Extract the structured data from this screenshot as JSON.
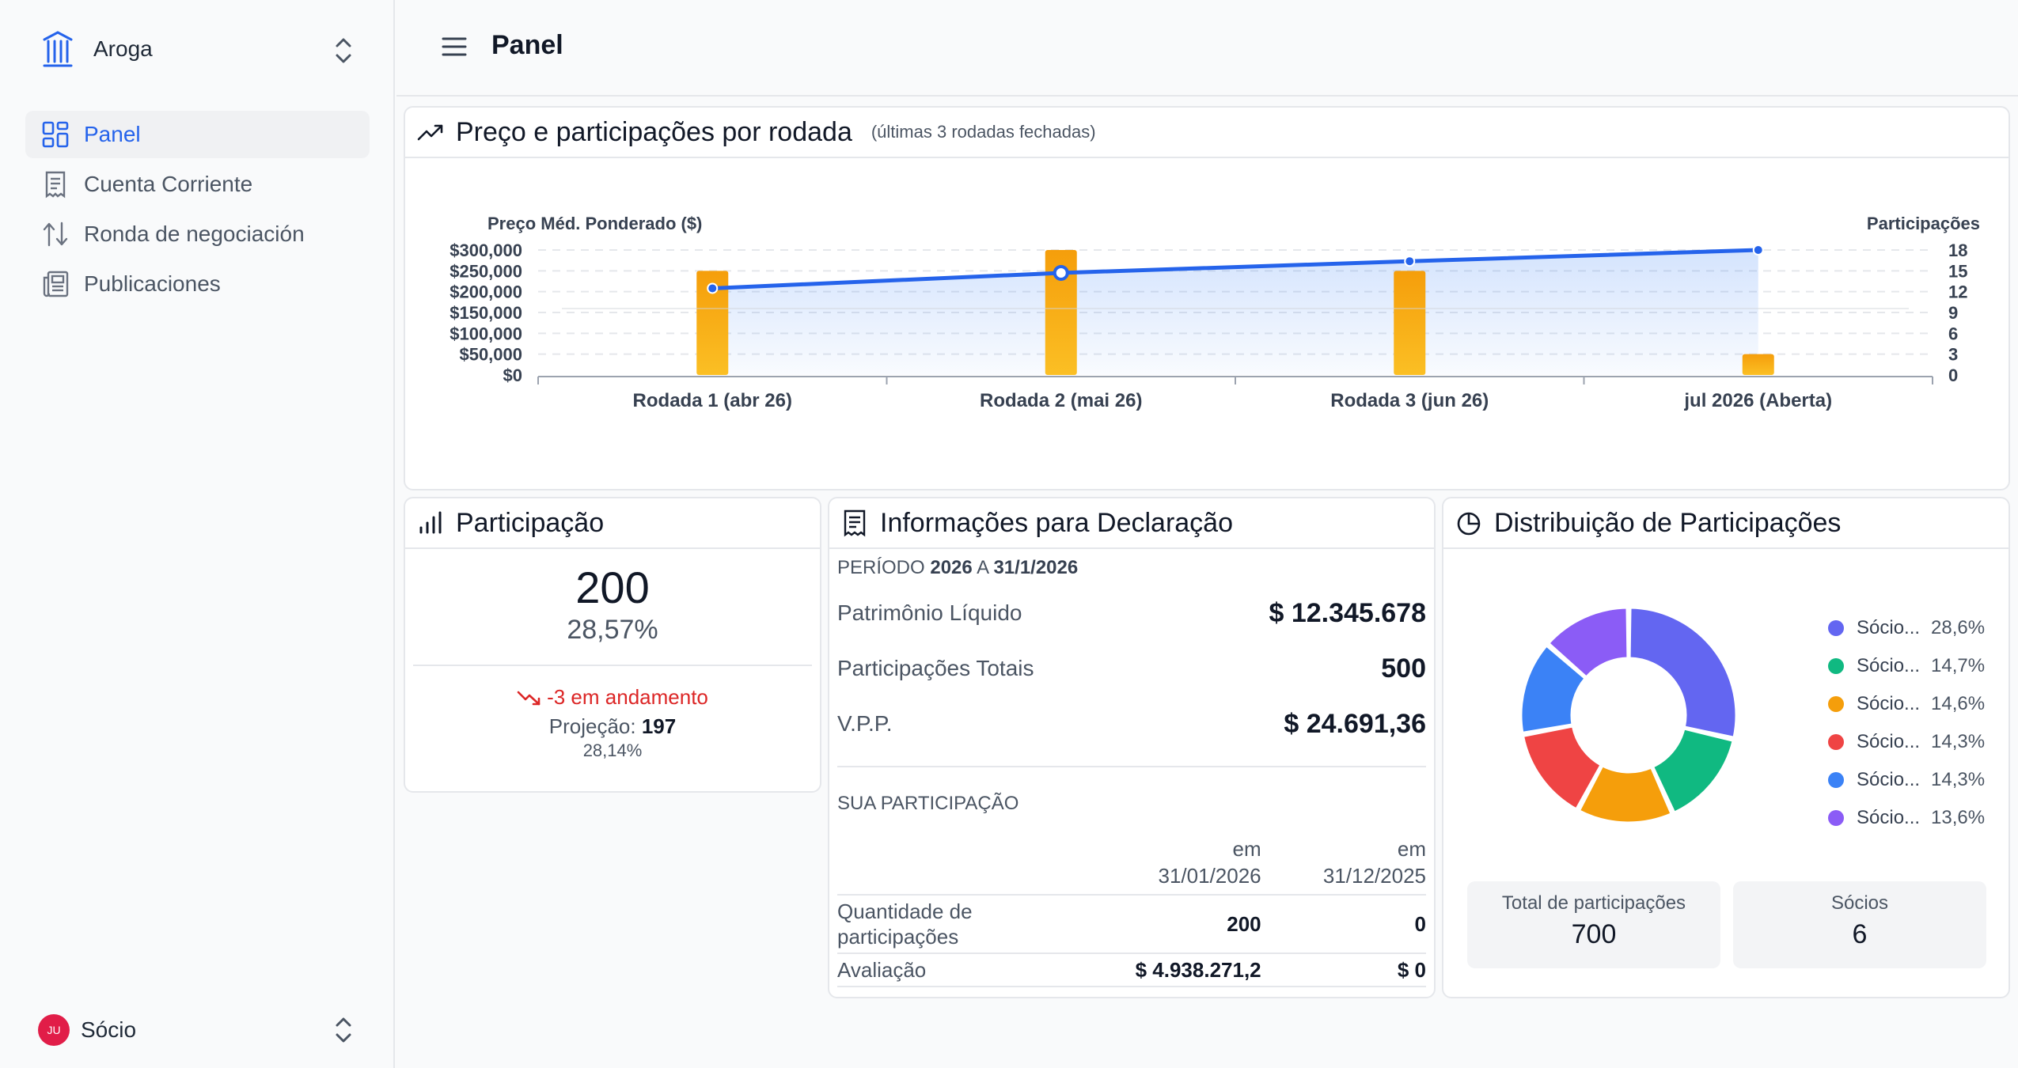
{
  "sidebar": {
    "org_name": "Aroga",
    "items": [
      {
        "label": "Panel",
        "icon": "dashboard-icon"
      },
      {
        "label": "Cuenta Corriente",
        "icon": "receipt-icon"
      },
      {
        "label": "Ronda de negociación",
        "icon": "arrows-up-down-icon"
      },
      {
        "label": "Publicaciones",
        "icon": "newspaper-icon"
      }
    ],
    "user": {
      "initials": "JU",
      "name": "Sócio"
    }
  },
  "header": {
    "title": "Panel"
  },
  "chart_card": {
    "title": "Preço e participações por rodada",
    "subtitle": "(últimas 3 rodadas fechadas)"
  },
  "chart_data": {
    "type": "bar",
    "categories": [
      "Rodada 1 (abr 26)",
      "Rodada 2 (mai 26)",
      "Rodada 3 (jun 26)",
      "jul 2026 (Aberta)"
    ],
    "series": [
      {
        "name": "Participações",
        "type": "bar",
        "axis": "right",
        "values": [
          15,
          18,
          15,
          3
        ],
        "color": "#f5b400"
      },
      {
        "name": "Preço Méd. Ponderado ($)",
        "type": "line",
        "axis": "left",
        "values": [
          208000,
          245000,
          273000,
          300000
        ],
        "color": "#2563eb"
      }
    ],
    "left_axis": {
      "label": "Preço Méd. Ponderado ($)",
      "ticks": [
        "$0",
        "$50,000",
        "$100,000",
        "$150,000",
        "$200,000",
        "$250,000",
        "$300,000"
      ],
      "ylim": [
        0,
        300000
      ]
    },
    "right_axis": {
      "label": "Participações",
      "ticks": [
        "0",
        "3",
        "6",
        "9",
        "12",
        "15",
        "18"
      ],
      "ylim": [
        0,
        18
      ]
    },
    "grid": true
  },
  "participacao": {
    "title": "Participação",
    "value": "200",
    "percent": "28,57%",
    "trend": "-3 em andamento",
    "projection_label": "Projeção:",
    "projection_value": "197",
    "projection_percent": "28,14%"
  },
  "declaracao": {
    "title": "Informações para Declaração",
    "period_prefix": "PERÍODO",
    "period_year": "2026",
    "period_sep": "A",
    "period_end": "31/1/2026",
    "rows": [
      {
        "label": "Patrimônio Líquido",
        "value": "$ 12.345.678"
      },
      {
        "label": "Participações Totais",
        "value": "500"
      },
      {
        "label": "V.P.P.",
        "value": "$ 24.691,36"
      }
    ],
    "sua_label": "SUA PARTICIPAÇÃO",
    "col1_top": "em",
    "col1_bottom": "31/01/2026",
    "col2_top": "em",
    "col2_bottom": "31/12/2025",
    "table": [
      {
        "label": "Quantidade de participações",
        "v1": "200",
        "v2": "0"
      },
      {
        "label": "Avaliação",
        "v1": "$ 4.938.271,2",
        "v2": "$ 0"
      }
    ]
  },
  "distribuicao": {
    "title": "Distribuição de Participações",
    "segments": [
      {
        "name": "Sócio...",
        "pct": "28,6%",
        "value": 28.6,
        "color": "#6366f1"
      },
      {
        "name": "Sócio...",
        "pct": "14,7%",
        "value": 14.7,
        "color": "#10b981"
      },
      {
        "name": "Sócio...",
        "pct": "14,6%",
        "value": 14.6,
        "color": "#f59e0b"
      },
      {
        "name": "Sócio...",
        "pct": "14,3%",
        "value": 14.3,
        "color": "#ef4444"
      },
      {
        "name": "Sócio...",
        "pct": "14,3%",
        "value": 14.3,
        "color": "#3b82f6"
      },
      {
        "name": "Sócio...",
        "pct": "13,6%",
        "value": 13.6,
        "color": "#8b5cf6"
      }
    ],
    "total_label": "Total de participações",
    "total_value": "700",
    "partners_label": "Sócios",
    "partners_value": "6"
  }
}
